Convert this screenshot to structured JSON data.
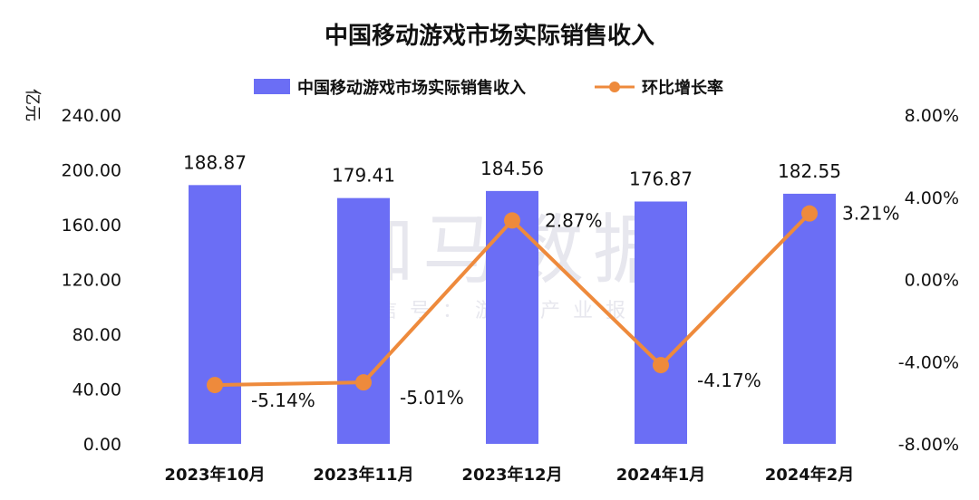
{
  "watermark": {
    "main": "伽马数据",
    "sub": "微信号：游戏产业报告"
  },
  "chart_data": {
    "type": "bar",
    "title": "中国移动游戏市场实际销售收入",
    "categories": [
      "2023年10月",
      "2023年11月",
      "2023年12月",
      "2024年1月",
      "2024年2月"
    ],
    "y_unit": "亿元",
    "ylim": [
      0,
      240
    ],
    "y_ticks": [
      "0.00",
      "40.00",
      "80.00",
      "120.00",
      "160.00",
      "200.00",
      "240.00"
    ],
    "y2lim": [
      -8,
      8
    ],
    "y2_ticks": [
      "-8.00%",
      "-4.00%",
      "0.00%",
      "4.00%",
      "8.00%"
    ],
    "legend_position": "top-center",
    "grid": false,
    "series": [
      {
        "name": "中国移动游戏市场实际销售收入",
        "type": "bar",
        "axis": "left",
        "color": "#6b6ef5",
        "values": [
          188.87,
          179.41,
          184.56,
          176.87,
          182.55
        ],
        "labels": [
          "188.87",
          "179.41",
          "184.56",
          "176.87",
          "182.55"
        ]
      },
      {
        "name": "环比增长率",
        "type": "line",
        "axis": "right",
        "color": "#ee8a3c",
        "values": [
          -5.14,
          -5.01,
          2.87,
          -4.17,
          3.21
        ],
        "labels": [
          "-5.14%",
          "-5.01%",
          "2.87%",
          "-4.17%",
          "3.21%"
        ]
      }
    ]
  }
}
